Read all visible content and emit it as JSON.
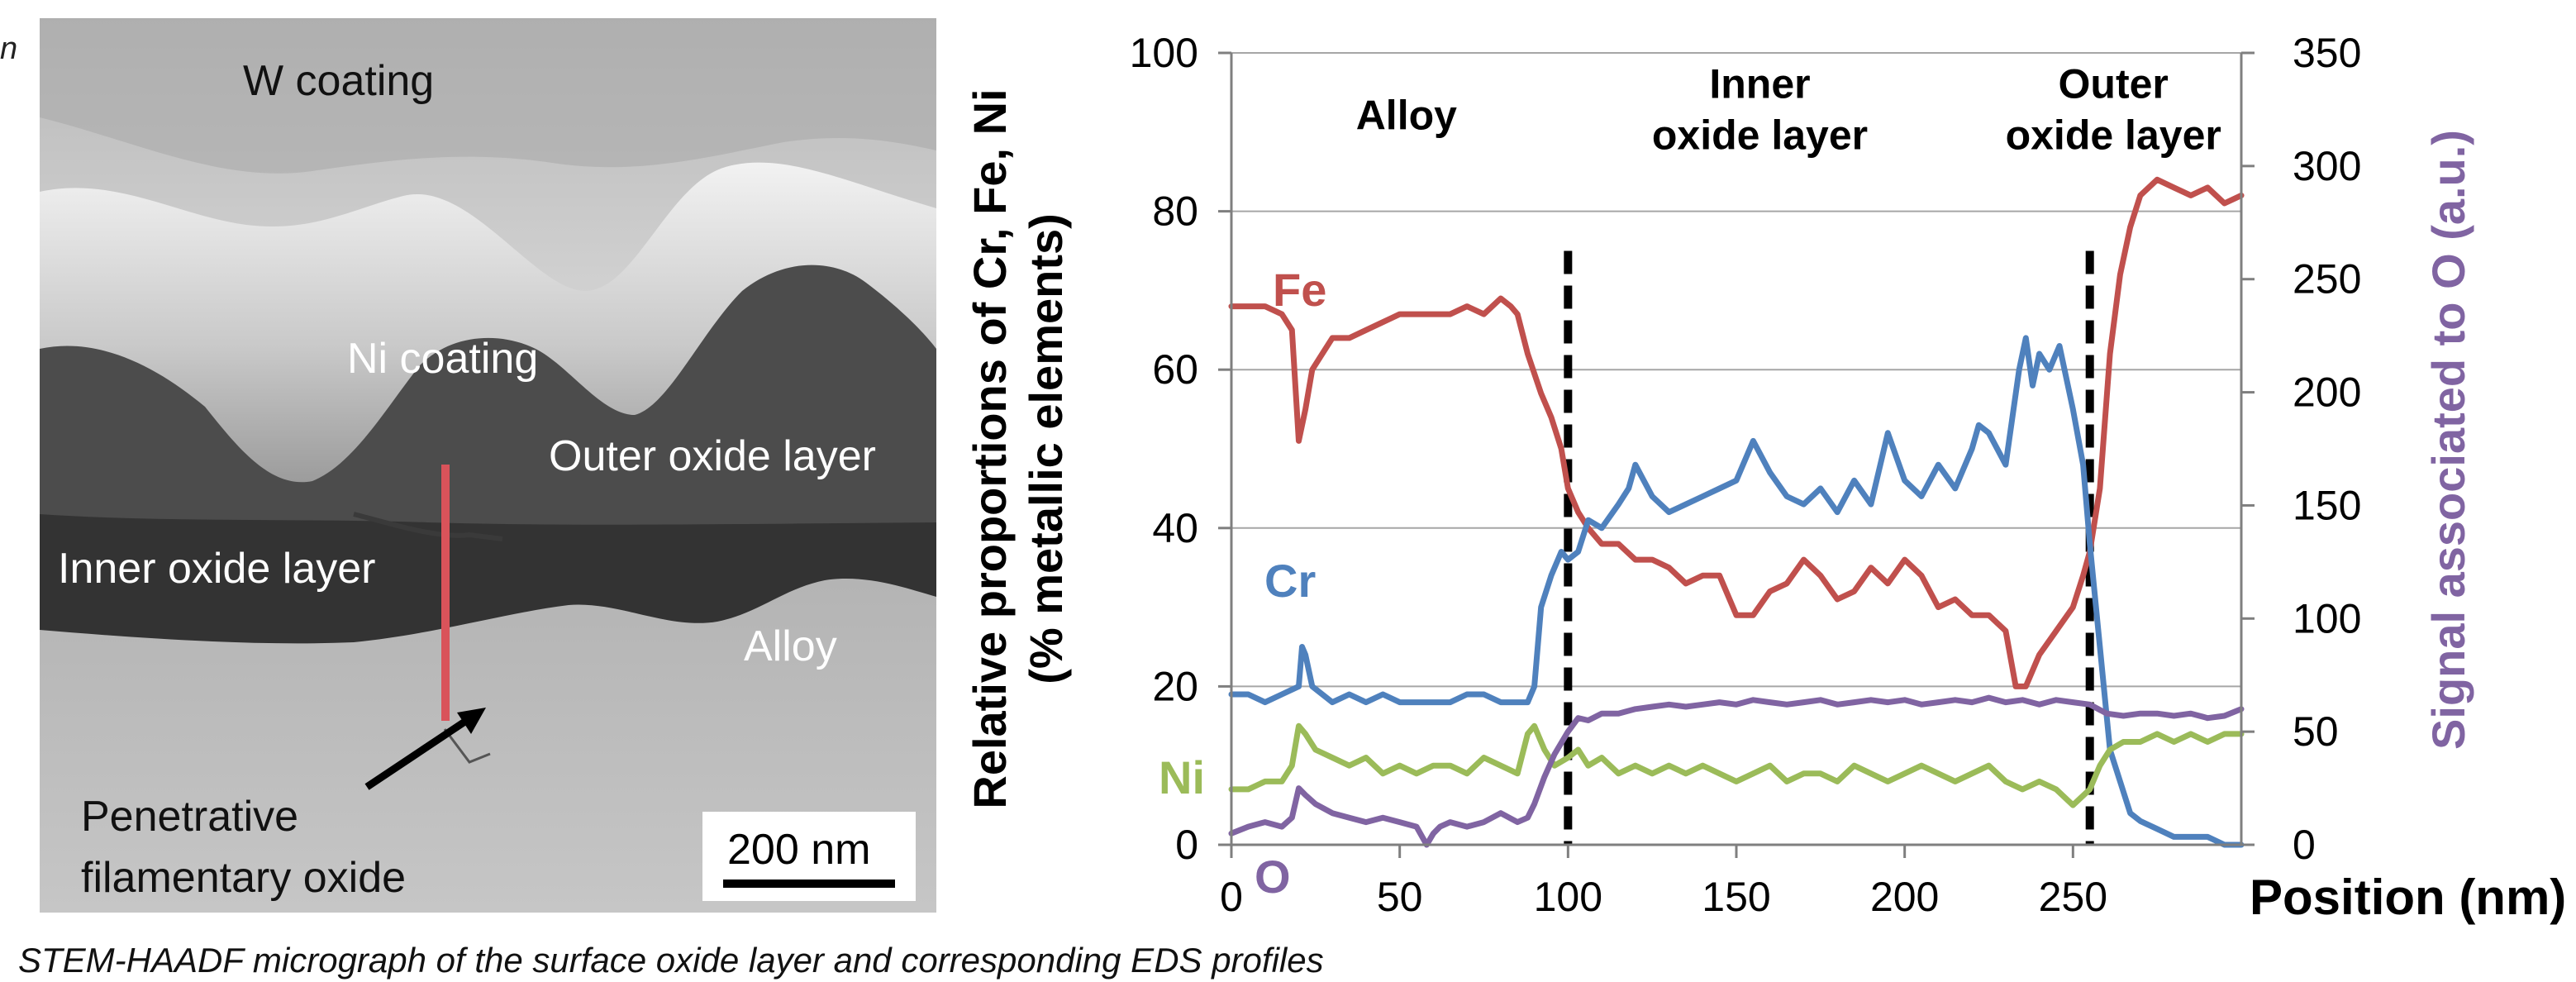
{
  "left_edge_text": "n",
  "micrograph": {
    "labels": {
      "w_coating": "W coating",
      "ni_coating": "Ni coating",
      "outer_oxide": "Outer oxide layer",
      "inner_oxide": "Inner oxide layer",
      "alloy": "Alloy",
      "filament_line1": "Penetrative",
      "filament_line2": "filamentary oxide"
    },
    "scale_bar": "200 nm",
    "profile_line_color": "#d9535a"
  },
  "caption": "STEM-HAADF micrograph of  the surface oxide layer and corresponding EDS profiles",
  "chart_data": {
    "type": "line",
    "xlabel": "Position (nm)",
    "ylabel_line1": "Relative proportions of Cr, Fe, Ni",
    "ylabel_line2": "(% metallic elements)",
    "y2label": "Signal associated to O (a.u.)",
    "xlim": [
      0,
      300
    ],
    "ylim": [
      0,
      100
    ],
    "y2lim": [
      0,
      350
    ],
    "xticks": [
      0,
      50,
      100,
      150,
      200,
      250
    ],
    "yticks": [
      0,
      20,
      40,
      60,
      80,
      100
    ],
    "y2ticks": [
      0,
      50,
      100,
      150,
      200,
      250,
      300,
      350
    ],
    "grid": "horizontal",
    "boundaries": [
      100,
      255
    ],
    "regions": [
      {
        "lines": [
          "Alloy"
        ],
        "x": 52,
        "y": 92
      },
      {
        "lines": [
          "Inner",
          "oxide layer"
        ],
        "x": 157,
        "y": 96
      },
      {
        "lines": [
          "Outer",
          "oxide layer"
        ],
        "x": 262,
        "y": 96
      }
    ],
    "series": [
      {
        "name": "Fe",
        "color": "#c0504d",
        "axis": "left",
        "x": [
          0,
          5,
          10,
          15,
          18,
          20,
          22,
          24,
          27,
          30,
          35,
          40,
          45,
          50,
          55,
          60,
          65,
          70,
          75,
          80,
          83,
          85,
          88,
          92,
          95,
          98,
          100,
          103,
          106,
          110,
          115,
          120,
          125,
          130,
          135,
          140,
          145,
          150,
          155,
          160,
          165,
          170,
          175,
          180,
          185,
          190,
          195,
          200,
          205,
          210,
          215,
          220,
          225,
          230,
          233,
          236,
          240,
          245,
          250,
          253,
          255,
          258,
          261,
          264,
          267,
          270,
          275,
          280,
          285,
          290,
          295,
          300
        ],
        "values": [
          68,
          68,
          68,
          67,
          65,
          51,
          55,
          60,
          62,
          64,
          64,
          65,
          66,
          67,
          67,
          67,
          67,
          68,
          67,
          69,
          68,
          67,
          62,
          57,
          54,
          50,
          45,
          42,
          40,
          38,
          38,
          36,
          36,
          35,
          33,
          34,
          34,
          29,
          29,
          32,
          33,
          36,
          34,
          31,
          32,
          35,
          33,
          36,
          34,
          30,
          31,
          29,
          29,
          27,
          20,
          20,
          24,
          27,
          30,
          34,
          37,
          45,
          62,
          72,
          78,
          82,
          84,
          83,
          82,
          83,
          81,
          82
        ]
      },
      {
        "name": "Cr",
        "color": "#4f81bd",
        "axis": "left",
        "x": [
          0,
          5,
          10,
          15,
          20,
          21,
          22,
          24,
          27,
          30,
          35,
          40,
          45,
          50,
          55,
          60,
          65,
          70,
          75,
          80,
          85,
          88,
          90,
          92,
          95,
          98,
          100,
          103,
          106,
          110,
          115,
          118,
          120,
          125,
          130,
          135,
          140,
          145,
          150,
          155,
          160,
          165,
          170,
          175,
          180,
          185,
          190,
          195,
          200,
          205,
          210,
          215,
          220,
          222,
          225,
          230,
          234,
          236,
          238,
          240,
          243,
          246,
          250,
          253,
          255,
          258,
          261,
          264,
          267,
          270,
          275,
          280,
          285,
          290,
          295,
          300
        ],
        "values": [
          19,
          19,
          18,
          19,
          20,
          25,
          24,
          20,
          19,
          18,
          19,
          18,
          19,
          18,
          18,
          18,
          18,
          19,
          19,
          18,
          18,
          18,
          20,
          30,
          34,
          37,
          36,
          37,
          41,
          40,
          43,
          45,
          48,
          44,
          42,
          43,
          44,
          45,
          46,
          51,
          47,
          44,
          43,
          45,
          42,
          46,
          43,
          52,
          46,
          44,
          48,
          45,
          50,
          53,
          52,
          48,
          60,
          64,
          58,
          62,
          60,
          63,
          55,
          48,
          38,
          25,
          12,
          8,
          4,
          3,
          2,
          1,
          1,
          1,
          0,
          0
        ]
      },
      {
        "name": "Ni",
        "color": "#9bbb59",
        "axis": "left",
        "x": [
          0,
          5,
          10,
          15,
          18,
          20,
          22,
          25,
          30,
          35,
          40,
          45,
          50,
          55,
          60,
          65,
          70,
          75,
          80,
          85,
          88,
          90,
          93,
          96,
          100,
          103,
          106,
          110,
          115,
          120,
          125,
          130,
          135,
          140,
          145,
          150,
          155,
          160,
          165,
          170,
          175,
          180,
          185,
          190,
          195,
          200,
          205,
          210,
          215,
          220,
          225,
          230,
          235,
          240,
          245,
          250,
          255,
          258,
          261,
          265,
          270,
          275,
          280,
          285,
          290,
          295,
          300
        ],
        "values": [
          7,
          7,
          8,
          8,
          10,
          15,
          14,
          12,
          11,
          10,
          11,
          9,
          10,
          9,
          10,
          10,
          9,
          11,
          10,
          9,
          14,
          15,
          12,
          10,
          11,
          12,
          10,
          11,
          9,
          10,
          9,
          10,
          9,
          10,
          9,
          8,
          9,
          10,
          8,
          9,
          9,
          8,
          10,
          9,
          8,
          9,
          10,
          9,
          8,
          9,
          10,
          8,
          7,
          8,
          7,
          5,
          7,
          10,
          12,
          13,
          13,
          14,
          13,
          14,
          13,
          14,
          14
        ]
      },
      {
        "name": "O",
        "color": "#8064a2",
        "axis": "right",
        "x": [
          0,
          5,
          10,
          15,
          18,
          20,
          22,
          25,
          30,
          35,
          40,
          45,
          50,
          55,
          58,
          60,
          62,
          65,
          70,
          75,
          80,
          85,
          88,
          90,
          93,
          96,
          100,
          103,
          106,
          110,
          115,
          120,
          125,
          130,
          135,
          140,
          145,
          150,
          155,
          160,
          165,
          170,
          175,
          180,
          185,
          190,
          195,
          200,
          205,
          210,
          215,
          220,
          225,
          230,
          235,
          240,
          245,
          250,
          255,
          260,
          265,
          270,
          275,
          280,
          285,
          290,
          295,
          300
        ],
        "values": [
          5,
          8,
          10,
          8,
          12,
          25,
          22,
          18,
          14,
          12,
          10,
          12,
          10,
          8,
          0,
          5,
          8,
          10,
          8,
          10,
          14,
          10,
          12,
          18,
          30,
          40,
          50,
          56,
          55,
          58,
          58,
          60,
          61,
          62,
          61,
          62,
          63,
          62,
          64,
          63,
          62,
          63,
          64,
          62,
          63,
          64,
          63,
          64,
          62,
          63,
          64,
          63,
          65,
          63,
          64,
          62,
          64,
          63,
          62,
          58,
          57,
          58,
          58,
          57,
          58,
          56,
          57,
          60
        ]
      }
    ]
  }
}
